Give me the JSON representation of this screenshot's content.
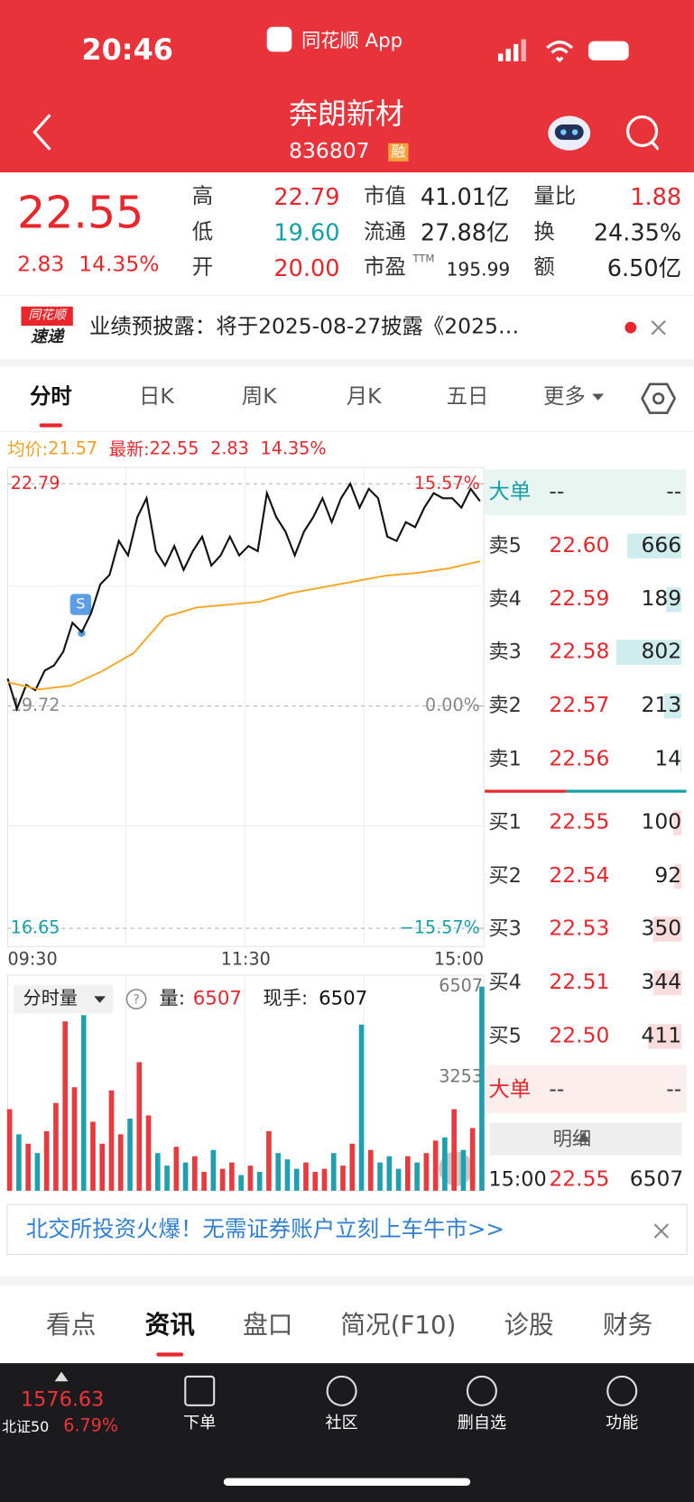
{
  "status": {
    "time": "20:46",
    "app": "同花顺 App"
  },
  "header": {
    "title": "奔朗新材",
    "code": "836807",
    "badge": "融"
  },
  "quote": {
    "price": "22.55",
    "change": "2.83",
    "percent": "14.35%",
    "stats": [
      [
        {
          "label": "高",
          "value": "22.79",
          "color": "#e8262b"
        },
        {
          "label": "低",
          "value": "19.60",
          "color": "#14a0a6"
        },
        {
          "label": "开",
          "value": "20.00",
          "color": "#e8262b"
        }
      ],
      [
        {
          "label": "市值",
          "value": "41.01亿",
          "color": "#222"
        },
        {
          "label": "流通",
          "value": "27.88亿",
          "color": "#222"
        },
        {
          "label": "市盈",
          "note": "TTM",
          "value": "195.99",
          "color": "#222"
        }
      ],
      [
        {
          "label": "量比",
          "value": "1.88",
          "color": "#e8262b"
        },
        {
          "label": "换",
          "value": "24.35%",
          "color": "#222"
        },
        {
          "label": "额",
          "value": "6.50亿",
          "color": "#222"
        }
      ]
    ]
  },
  "news": {
    "logo_top": "同花顺",
    "logo_bottom": "速递",
    "text": "业绩预披露：将于2025-08-27披露《2025…"
  },
  "tabs": {
    "items": [
      "分时",
      "日K",
      "周K",
      "月K",
      "五日",
      "更多"
    ],
    "active": 0
  },
  "chart_data": [
    {
      "type": "line",
      "summary": {
        "avg_label": "均价:",
        "avg": "21.57",
        "last_label": "最新:",
        "last": "22.55",
        "change": "2.83",
        "percent": "14.35%"
      },
      "marker": "S",
      "x_labels": [
        "09:30",
        "11:30",
        "15:00"
      ],
      "ylim": [
        16.65,
        22.79
      ],
      "yticks": [
        22.79,
        19.72,
        16.65
      ],
      "y2lim": [
        -15.57,
        15.57
      ],
      "y2ticks": [
        {
          "value": 15.57,
          "label": "15.57%"
        },
        {
          "value": 0,
          "label": "0.00%"
        },
        {
          "value": -15.57,
          "label": "−15.57%"
        }
      ],
      "series": [
        {
          "color": "#111111",
          "values": [
            20.1,
            19.68,
            20.01,
            19.94,
            20.21,
            20.28,
            20.47,
            20.87,
            20.74,
            21.0,
            21.4,
            21.53,
            22.0,
            21.8,
            22.33,
            22.59,
            21.86,
            21.66,
            21.93,
            21.6,
            21.86,
            22.06,
            21.66,
            21.8,
            22.06,
            21.8,
            21.93,
            21.86,
            22.66,
            22.33,
            22.13,
            21.8,
            22.13,
            22.33,
            22.59,
            22.26,
            22.59,
            22.79,
            22.46,
            22.72,
            22.59,
            22.06,
            22.0,
            22.26,
            22.19,
            22.46,
            22.66,
            22.59,
            22.59,
            22.46,
            22.72,
            22.55
          ]
        },
        {
          "color": "#f5a623",
          "values": [
            20.05,
            19.95,
            20.0,
            20.2,
            20.45,
            20.95,
            21.08,
            21.12,
            21.16,
            21.28,
            21.36,
            21.44,
            21.52,
            21.56,
            21.62,
            21.72
          ]
        }
      ]
    },
    {
      "type": "bar",
      "selector": "分时量",
      "qty_label": "量:",
      "qty": "6507",
      "hand_label": "现手:",
      "hand": "6507",
      "ylim": [
        0,
        6507
      ],
      "yticks": [
        6507,
        3253
      ],
      "values": [
        2600,
        1800,
        1500,
        1200,
        1900,
        2800,
        5400,
        3300,
        5600,
        2200,
        1500,
        3200,
        1800,
        2300,
        4100,
        2400,
        1200,
        800,
        1400,
        900,
        1100,
        600,
        1300,
        700,
        900,
        500,
        800,
        600,
        1900,
        1200,
        1000,
        700,
        900,
        600,
        700,
        1200,
        800,
        1500,
        5300,
        1300,
        900,
        1100,
        700,
        1100,
        900,
        1200,
        1600,
        1700,
        2600,
        1300,
        2000,
        6507
      ]
    }
  ],
  "order_book": {
    "header": [
      "大单",
      "--",
      "--"
    ],
    "asks": [
      {
        "label": "卖5",
        "price": "22.60",
        "volume": 666
      },
      {
        "label": "卖4",
        "price": "22.59",
        "volume": 189
      },
      {
        "label": "卖3",
        "price": "22.58",
        "volume": 802
      },
      {
        "label": "卖2",
        "price": "22.57",
        "volume": 213
      },
      {
        "label": "卖1",
        "price": "22.56",
        "volume": 14
      }
    ],
    "bids": [
      {
        "label": "买1",
        "price": "22.55",
        "volume": 100
      },
      {
        "label": "买2",
        "price": "22.54",
        "volume": 92
      },
      {
        "label": "买3",
        "price": "22.53",
        "volume": 350
      },
      {
        "label": "买4",
        "price": "22.51",
        "volume": 344
      },
      {
        "label": "买5",
        "price": "22.50",
        "volume": 411
      }
    ],
    "footer": [
      "大单",
      "--",
      "--"
    ],
    "detail_title": "明细",
    "trade": [
      "15:00",
      "22.55",
      "6507"
    ]
  },
  "banner": "北交所投资火爆！无需证券账户立刻上车牛市>>",
  "bottom_tabs": {
    "items": [
      "看点",
      "资讯",
      "盘口",
      "简况(F10)",
      "诊股",
      "财务"
    ],
    "active": 1
  },
  "nav": {
    "index_value": "1576.63",
    "index_name": "北证50",
    "index_percent": "6.79%",
    "items": [
      "下单",
      "社区",
      "删自选",
      "功能"
    ]
  }
}
